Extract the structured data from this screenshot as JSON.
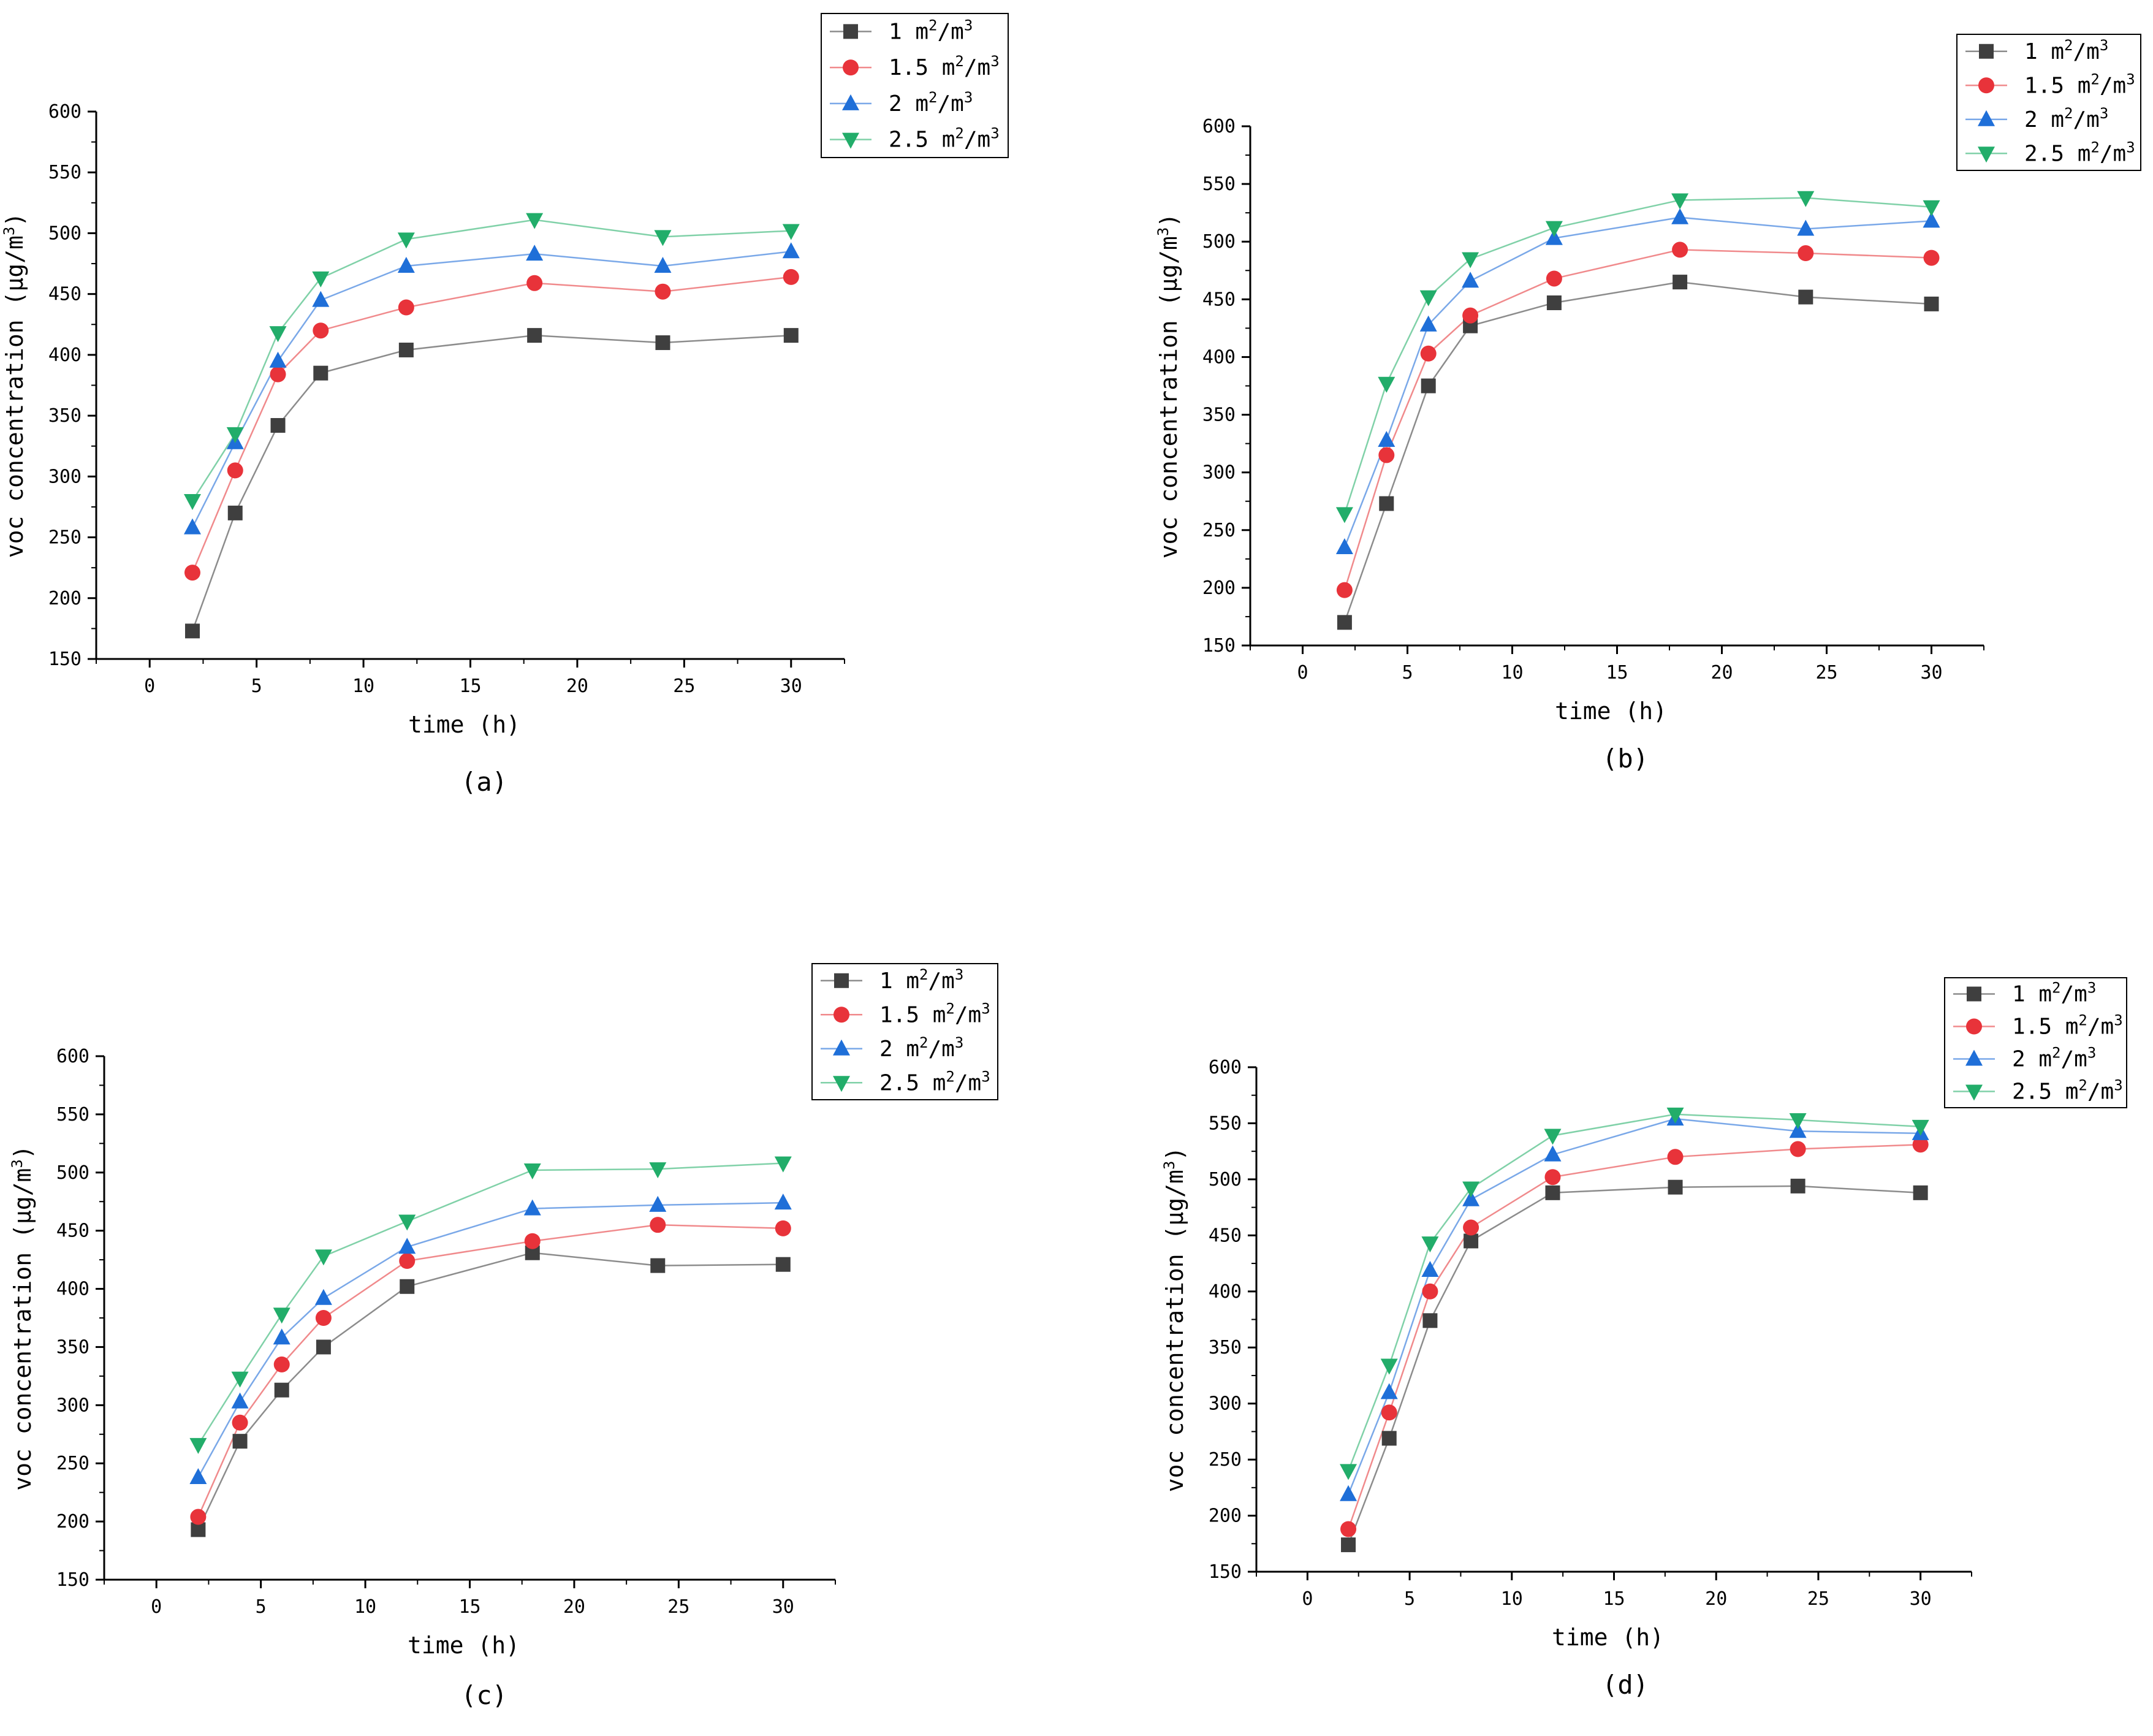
{
  "figure": {
    "series_names": [
      "1 m²/m³",
      "1.5 m²/m³",
      "2 m²/m³",
      "2.5 m²/m³"
    ],
    "series_styles": [
      {
        "color": "#3f3f3f",
        "line": "#8c8c8c",
        "marker": "square"
      },
      {
        "color": "#e8333a",
        "line": "#f08a8c",
        "marker": "circle"
      },
      {
        "color": "#1f6fd8",
        "line": "#7aa8e8",
        "marker": "triangle-up"
      },
      {
        "color": "#22ad6a",
        "line": "#80d1a8",
        "marker": "triangle-down"
      }
    ]
  },
  "chart_data": [
    {
      "type": "line",
      "caption": "(a)",
      "xlabel": "time (h)",
      "ylabel": "voc concentration (μg/m³)",
      "xlim": [
        -2.5,
        32.5
      ],
      "ylim": [
        150,
        600
      ],
      "xticks": [
        0,
        5,
        10,
        15,
        20,
        25,
        30
      ],
      "yticks": [
        150,
        200,
        250,
        300,
        350,
        400,
        450,
        500,
        550,
        600
      ],
      "x": [
        2,
        4,
        6,
        8,
        12,
        18,
        24,
        30
      ],
      "series": [
        {
          "name": "1 m²/m³",
          "values": [
            173,
            270,
            342,
            385,
            404,
            416,
            410,
            416
          ]
        },
        {
          "name": "1.5 m²/m³",
          "values": [
            221,
            305,
            384,
            420,
            439,
            459,
            452,
            464
          ]
        },
        {
          "name": "2 m²/m³",
          "values": [
            258,
            328,
            395,
            445,
            473,
            483,
            473,
            485
          ]
        },
        {
          "name": "2.5 m²/m³",
          "values": [
            280,
            335,
            418,
            463,
            495,
            511,
            497,
            502
          ]
        }
      ]
    },
    {
      "type": "line",
      "caption": "(b)",
      "xlabel": "time (h)",
      "ylabel": "voc concentration (μg/m³)",
      "xlim": [
        -2.5,
        32.5
      ],
      "ylim": [
        150,
        600
      ],
      "xticks": [
        0,
        5,
        10,
        15,
        20,
        25,
        30
      ],
      "yticks": [
        150,
        200,
        250,
        300,
        350,
        400,
        450,
        500,
        550,
        600
      ],
      "x": [
        2,
        4,
        6,
        8,
        12,
        18,
        24,
        30
      ],
      "series": [
        {
          "name": "1 m²/m³",
          "values": [
            170,
            273,
            375,
            427,
            447,
            465,
            452,
            446
          ]
        },
        {
          "name": "1.5 m²/m³",
          "values": [
            198,
            315,
            403,
            436,
            468,
            493,
            490,
            486
          ]
        },
        {
          "name": "2 m²/m³",
          "values": [
            235,
            328,
            428,
            466,
            503,
            521,
            511,
            518
          ]
        },
        {
          "name": "2.5 m²/m³",
          "values": [
            264,
            377,
            452,
            485,
            512,
            536,
            538,
            530
          ]
        }
      ]
    },
    {
      "type": "line",
      "caption": "(c)",
      "xlabel": "time (h)",
      "ylabel": "voc concentration (μg/m³)",
      "xlim": [
        -2.5,
        32.5
      ],
      "ylim": [
        150,
        600
      ],
      "xticks": [
        0,
        5,
        10,
        15,
        20,
        25,
        30
      ],
      "yticks": [
        150,
        200,
        250,
        300,
        350,
        400,
        450,
        500,
        550,
        600
      ],
      "x": [
        2,
        4,
        6,
        8,
        12,
        18,
        24,
        30
      ],
      "series": [
        {
          "name": "1 m²/m³",
          "values": [
            193,
            269,
            313,
            350,
            402,
            431,
            420,
            421
          ]
        },
        {
          "name": "1.5 m²/m³",
          "values": [
            204,
            285,
            335,
            375,
            424,
            441,
            455,
            452
          ]
        },
        {
          "name": "2 m²/m³",
          "values": [
            238,
            303,
            358,
            392,
            436,
            469,
            472,
            474
          ]
        },
        {
          "name": "2.5 m²/m³",
          "values": [
            266,
            323,
            378,
            428,
            458,
            502,
            503,
            508
          ]
        }
      ]
    },
    {
      "type": "line",
      "caption": "(d)",
      "xlabel": "time (h)",
      "ylabel": "voc concentration (μg/m³)",
      "xlim": [
        -2.5,
        32.5
      ],
      "ylim": [
        150,
        600
      ],
      "xticks": [
        0,
        5,
        10,
        15,
        20,
        25,
        30
      ],
      "yticks": [
        150,
        200,
        250,
        300,
        350,
        400,
        450,
        500,
        550,
        600
      ],
      "x": [
        2,
        4,
        6,
        8,
        12,
        18,
        24,
        30
      ],
      "series": [
        {
          "name": "1 m²/m³",
          "values": [
            174,
            269,
            374,
            445,
            488,
            493,
            494,
            488
          ]
        },
        {
          "name": "1.5 m²/m³",
          "values": [
            188,
            292,
            400,
            457,
            502,
            520,
            527,
            531
          ]
        },
        {
          "name": "2 m²/m³",
          "values": [
            219,
            310,
            419,
            482,
            522,
            554,
            543,
            541
          ]
        },
        {
          "name": "2.5 m²/m³",
          "values": [
            240,
            334,
            443,
            492,
            539,
            558,
            553,
            547
          ]
        }
      ]
    }
  ]
}
